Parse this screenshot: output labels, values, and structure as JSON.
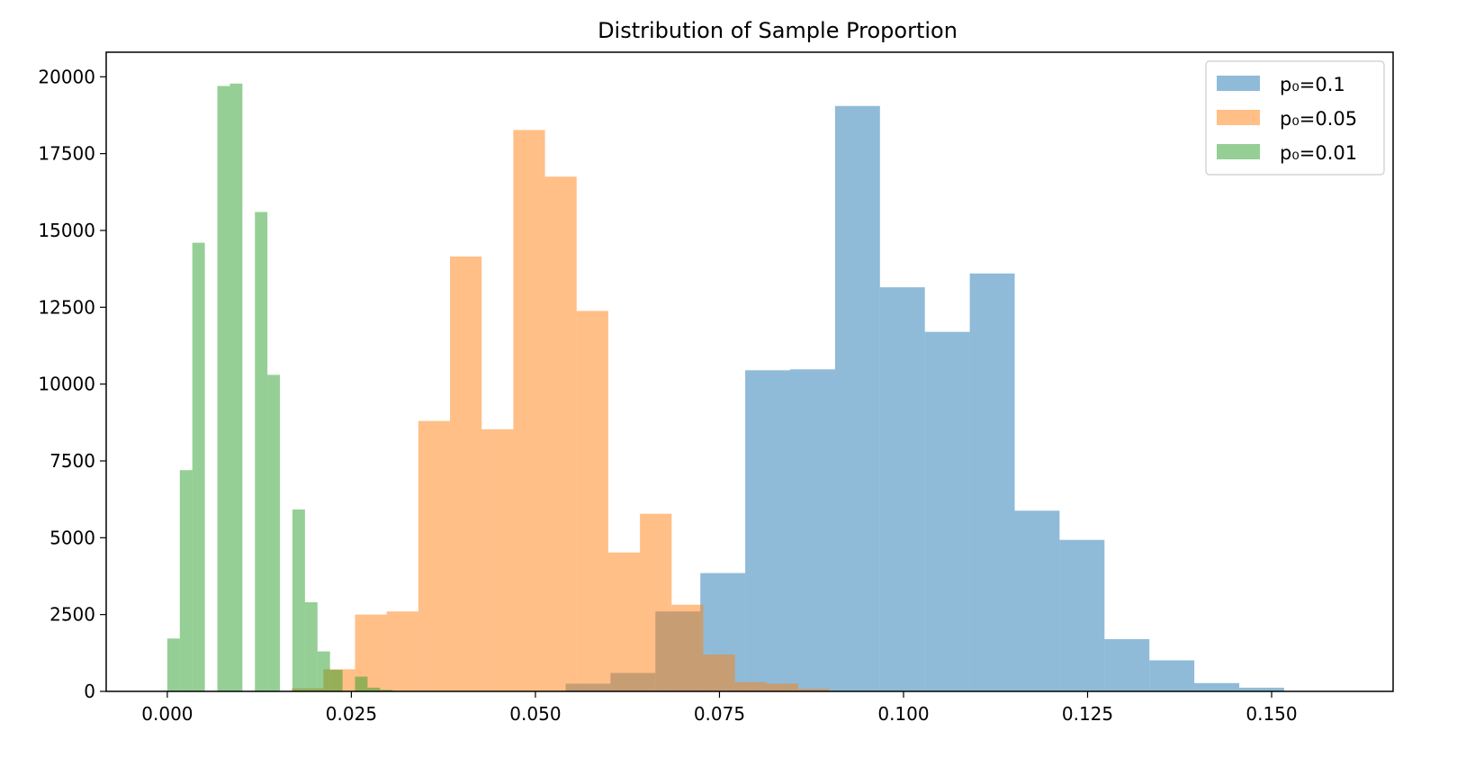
{
  "chart_data": {
    "type": "histogram",
    "title": "Distribution of Sample Proportion",
    "xlabel": "",
    "ylabel": "",
    "xlim": [
      -0.0083,
      0.1665
    ],
    "ylim": [
      0,
      20800
    ],
    "xticks": [
      0.0,
      0.025,
      0.05,
      0.075,
      0.1,
      0.125,
      0.15
    ],
    "xtick_labels": [
      "0.000",
      "0.025",
      "0.050",
      "0.075",
      "0.100",
      "0.125",
      "0.150"
    ],
    "yticks": [
      0,
      2500,
      5000,
      7500,
      10000,
      12500,
      15000,
      17500,
      20000
    ],
    "ytick_labels": [
      "0",
      "2500",
      "5000",
      "7500",
      "10000",
      "12500",
      "15000",
      "17500",
      "20000"
    ],
    "grid": false,
    "legend_position": "top-right",
    "series": [
      {
        "name": "p₀=0.1",
        "color": "#1f77b4",
        "alpha": 0.5,
        "bins": [
          {
            "x0": 0.0541,
            "x1": 0.0602,
            "count": 250
          },
          {
            "x0": 0.0602,
            "x1": 0.0663,
            "count": 600
          },
          {
            "x0": 0.0663,
            "x1": 0.0724,
            "count": 2600
          },
          {
            "x0": 0.0724,
            "x1": 0.0785,
            "count": 3850
          },
          {
            "x0": 0.0785,
            "x1": 0.0846,
            "count": 10450
          },
          {
            "x0": 0.0846,
            "x1": 0.0907,
            "count": 10480
          },
          {
            "x0": 0.0907,
            "x1": 0.0968,
            "count": 19050
          },
          {
            "x0": 0.0968,
            "x1": 0.1029,
            "count": 13150
          },
          {
            "x0": 0.1029,
            "x1": 0.109,
            "count": 11700
          },
          {
            "x0": 0.109,
            "x1": 0.1151,
            "count": 13600
          },
          {
            "x0": 0.1151,
            "x1": 0.1212,
            "count": 5880
          },
          {
            "x0": 0.1212,
            "x1": 0.1273,
            "count": 4930
          },
          {
            "x0": 0.1273,
            "x1": 0.1334,
            "count": 1700
          },
          {
            "x0": 0.1334,
            "x1": 0.1395,
            "count": 1010
          },
          {
            "x0": 0.1395,
            "x1": 0.1456,
            "count": 270
          },
          {
            "x0": 0.1456,
            "x1": 0.1517,
            "count": 120
          }
        ]
      },
      {
        "name": "p₀=0.05",
        "color": "#ff7f0e",
        "alpha": 0.5,
        "bins": [
          {
            "x0": 0.0169,
            "x1": 0.0212,
            "count": 100
          },
          {
            "x0": 0.0212,
            "x1": 0.0255,
            "count": 720
          },
          {
            "x0": 0.0255,
            "x1": 0.0298,
            "count": 2500
          },
          {
            "x0": 0.0298,
            "x1": 0.0341,
            "count": 2600
          },
          {
            "x0": 0.0341,
            "x1": 0.0384,
            "count": 8800
          },
          {
            "x0": 0.0384,
            "x1": 0.0427,
            "count": 14150
          },
          {
            "x0": 0.0427,
            "x1": 0.047,
            "count": 8530
          },
          {
            "x0": 0.047,
            "x1": 0.0513,
            "count": 18270
          },
          {
            "x0": 0.0513,
            "x1": 0.0556,
            "count": 16750
          },
          {
            "x0": 0.0556,
            "x1": 0.0599,
            "count": 12380
          },
          {
            "x0": 0.0599,
            "x1": 0.0642,
            "count": 4520
          },
          {
            "x0": 0.0642,
            "x1": 0.0685,
            "count": 5780
          },
          {
            "x0": 0.0685,
            "x1": 0.0728,
            "count": 2820
          },
          {
            "x0": 0.0728,
            "x1": 0.0771,
            "count": 1200
          },
          {
            "x0": 0.0771,
            "x1": 0.0814,
            "count": 300
          },
          {
            "x0": 0.0814,
            "x1": 0.0857,
            "count": 250
          },
          {
            "x0": 0.0857,
            "x1": 0.09,
            "count": 80
          }
        ]
      },
      {
        "name": "p₀=0.01",
        "color": "#2ca02c",
        "alpha": 0.5,
        "bins": [
          {
            "x0": 0.0,
            "x1": 0.0017,
            "count": 1720
          },
          {
            "x0": 0.0017,
            "x1": 0.0034,
            "count": 7200
          },
          {
            "x0": 0.0034,
            "x1": 0.0051,
            "count": 14600
          },
          {
            "x0": 0.0068,
            "x1": 0.0085,
            "count": 19700
          },
          {
            "x0": 0.0085,
            "x1": 0.0102,
            "count": 19780
          },
          {
            "x0": 0.0119,
            "x1": 0.0136,
            "count": 15600
          },
          {
            "x0": 0.0136,
            "x1": 0.0153,
            "count": 10300
          },
          {
            "x0": 0.017,
            "x1": 0.0187,
            "count": 5920
          },
          {
            "x0": 0.0187,
            "x1": 0.0204,
            "count": 2900
          },
          {
            "x0": 0.0204,
            "x1": 0.0221,
            "count": 1300
          },
          {
            "x0": 0.0221,
            "x1": 0.0238,
            "count": 700
          },
          {
            "x0": 0.0255,
            "x1": 0.0272,
            "count": 480
          },
          {
            "x0": 0.0272,
            "x1": 0.0289,
            "count": 120
          },
          {
            "x0": 0.0289,
            "x1": 0.0306,
            "count": 50
          }
        ]
      }
    ]
  }
}
